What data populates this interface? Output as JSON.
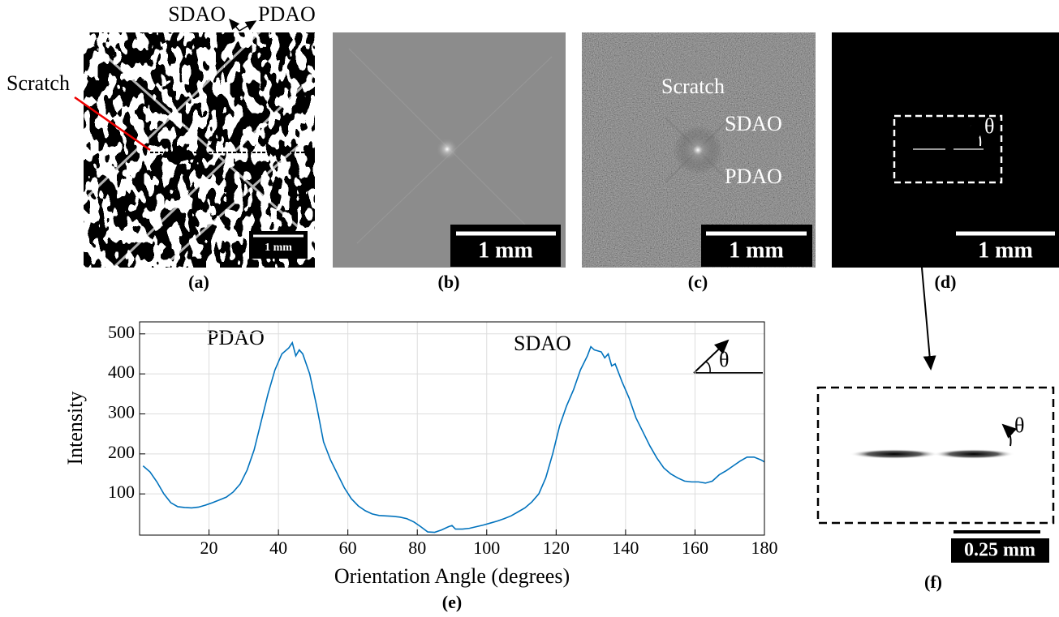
{
  "panel_a": {
    "label_sdao": "SDAO",
    "label_pdao": "PDAO",
    "label_scratch": "Scratch",
    "scale_bar": "1 mm",
    "caption": "(a)"
  },
  "panel_b": {
    "scale_bar": "1 mm",
    "caption": "(b)"
  },
  "panel_c": {
    "label_scratch": "Scratch",
    "label_sdao": "SDAO",
    "label_pdao": "PDAO",
    "scale_bar": "1 mm",
    "caption": "(c)"
  },
  "panel_d": {
    "angle_label": "θ",
    "scale_bar": "1 mm",
    "caption": "(d)"
  },
  "panel_e": {
    "caption": "(e)"
  },
  "panel_f": {
    "angle_label": "θ",
    "scale_bar": "0.25 mm",
    "caption": "(f)"
  },
  "chart_data": {
    "type": "line",
    "x_label": "Orientation Angle (degrees)",
    "y_label": "Intensity",
    "annotations": [
      "PDAO",
      "SDAO",
      "θ"
    ],
    "color": "#0072bd",
    "grid": true,
    "xlim": [
      0,
      180
    ],
    "ylim": [
      -3,
      530
    ],
    "xticks": [
      20,
      40,
      60,
      80,
      100,
      120,
      140,
      160,
      180
    ],
    "yticks": [
      100,
      200,
      300,
      400,
      500
    ],
    "x": [
      1,
      3,
      5,
      7,
      9,
      11,
      13,
      15,
      17,
      19,
      21,
      23,
      25,
      27,
      29,
      31,
      33,
      35,
      37,
      39,
      41,
      43,
      44,
      45,
      46,
      47,
      49,
      51,
      53,
      55,
      57,
      59,
      61,
      63,
      65,
      67,
      69,
      71,
      73,
      75,
      77,
      79,
      81,
      83,
      85,
      87,
      89,
      90,
      91,
      93,
      95,
      97,
      99,
      101,
      103,
      105,
      107,
      109,
      111,
      113,
      115,
      117,
      119,
      121,
      123,
      125,
      127,
      129,
      130,
      131,
      133,
      134,
      135,
      136,
      137,
      139,
      141,
      143,
      145,
      147,
      149,
      151,
      153,
      155,
      157,
      159,
      161,
      163,
      165,
      167,
      169,
      171,
      173,
      175,
      177,
      179,
      180
    ],
    "values": [
      170,
      155,
      130,
      100,
      78,
      68,
      66,
      65,
      67,
      72,
      78,
      85,
      92,
      105,
      125,
      160,
      210,
      280,
      350,
      410,
      450,
      465,
      478,
      445,
      460,
      450,
      400,
      320,
      230,
      185,
      150,
      115,
      88,
      70,
      58,
      50,
      46,
      45,
      44,
      42,
      38,
      30,
      18,
      5,
      4,
      10,
      18,
      21,
      12,
      12,
      14,
      18,
      22,
      27,
      32,
      38,
      45,
      55,
      65,
      80,
      100,
      140,
      200,
      270,
      320,
      360,
      410,
      445,
      468,
      460,
      455,
      440,
      450,
      420,
      425,
      380,
      340,
      290,
      255,
      220,
      190,
      165,
      150,
      140,
      132,
      130,
      130,
      127,
      132,
      148,
      158,
      170,
      182,
      192,
      192,
      185,
      180
    ]
  }
}
